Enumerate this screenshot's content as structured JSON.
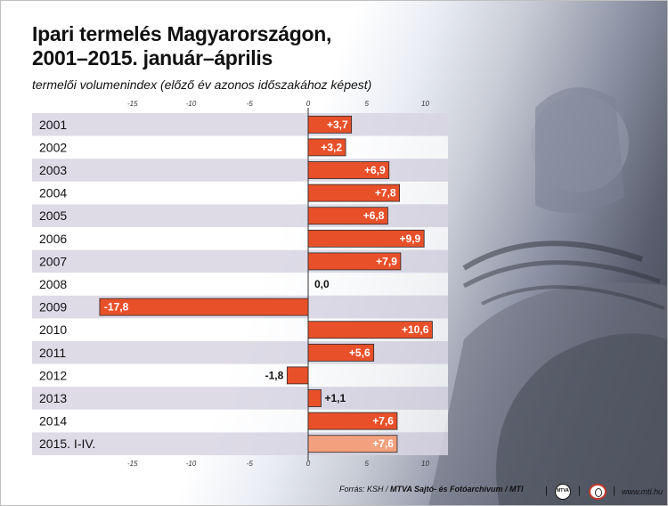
{
  "title_line1": "Ipari termelés Magyarországon,",
  "title_line2": "2001–2015. január–április",
  "subtitle": "termelői volumenindex (előző év azonos időszakához képest)",
  "chart_data": {
    "type": "bar",
    "orientation": "horizontal",
    "categories": [
      "2001",
      "2002",
      "2003",
      "2004",
      "2005",
      "2006",
      "2007",
      "2008",
      "2009",
      "2010",
      "2011",
      "2012",
      "2013",
      "2014",
      "2015. I-IV."
    ],
    "values": [
      3.7,
      3.2,
      6.9,
      7.8,
      6.8,
      9.9,
      7.9,
      0.0,
      -17.8,
      10.6,
      5.6,
      -1.8,
      1.1,
      7.6,
      7.6
    ],
    "labels": [
      "+3,7",
      "+3,2",
      "+6,9",
      "+7,8",
      "+6,8",
      "+9,9",
      "+7,9",
      "0,0",
      "-17,8",
      "+10,6",
      "+5,6",
      "-1,8",
      "+1,1",
      "+7,6",
      "+7,6"
    ],
    "xlim": [
      -20,
      12
    ],
    "ticks": [
      -15,
      -10,
      -5,
      0,
      5,
      10
    ],
    "tick_labels": [
      "-15",
      "-10",
      "-5",
      "0",
      "5",
      "10"
    ],
    "bar_color": "#e8502a",
    "highlight_color": "#f2a07e",
    "row_band_color": "#d8d5e3"
  },
  "footer": {
    "source_prefix": "Forrás: KSH / ",
    "source_bold": "MTVA Sajtó- és Fotóarchívum / MTI",
    "mtva_logo": "MTVA",
    "site": "www.mti.hu"
  }
}
